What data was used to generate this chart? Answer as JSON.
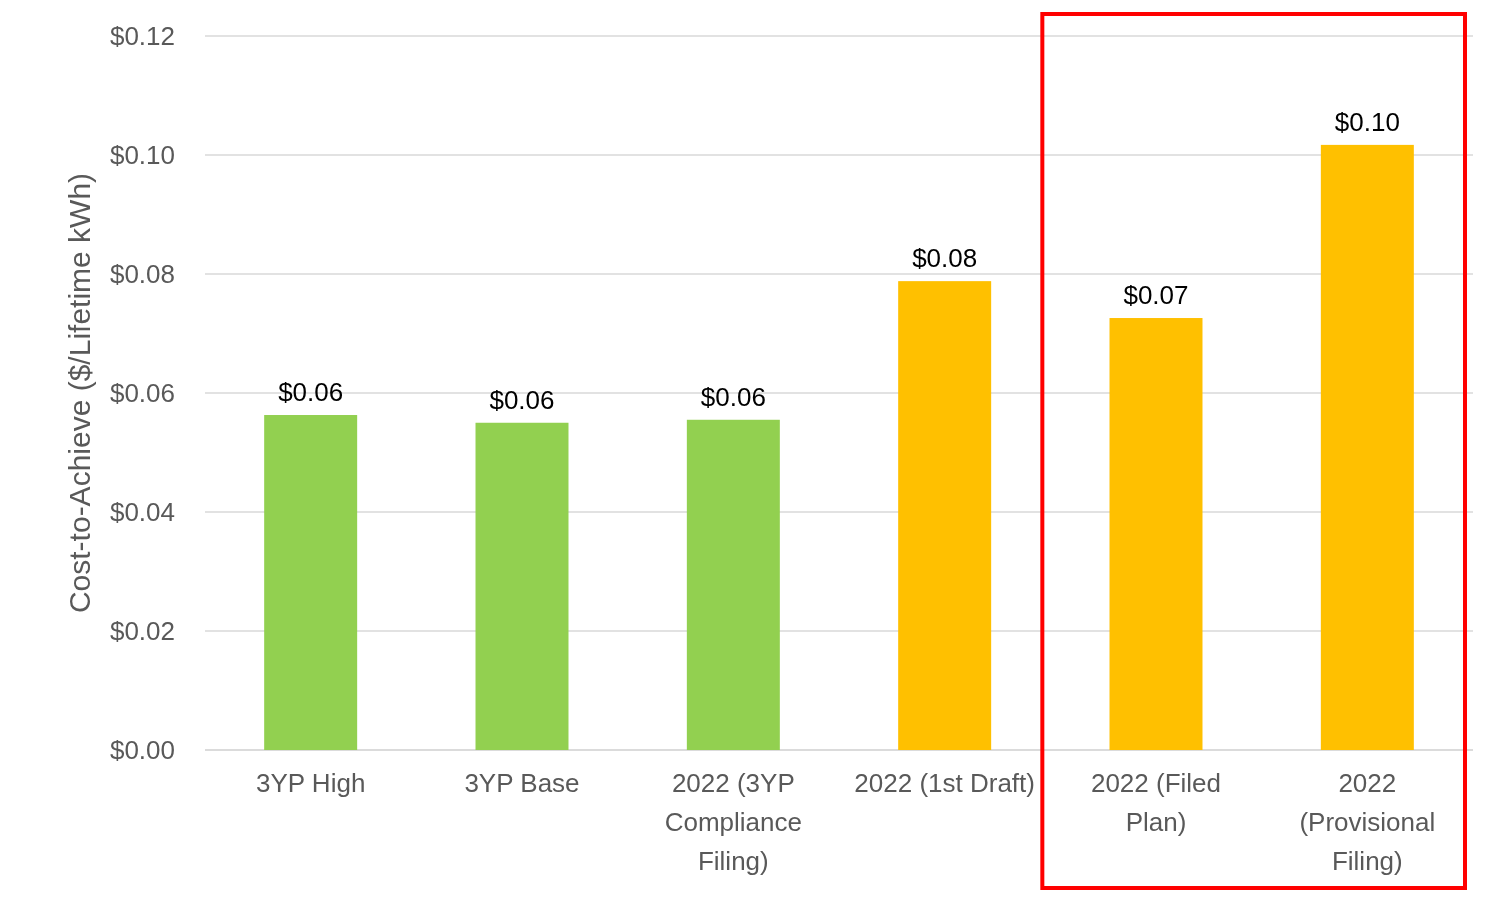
{
  "chart_data": {
    "type": "bar",
    "ylabel": "Cost-to-Achieve ($/Lifetime kWh)",
    "categories": [
      "3YP High",
      "3YP Base",
      "2022 (3YP Compliance Filing)",
      "2022 (1st Draft)",
      "2022 (Filed Plan)",
      "2022 (Provisional Filing)"
    ],
    "values": [
      0.0563,
      0.055,
      0.0555,
      0.0788,
      0.0726,
      0.1017
    ],
    "colors": [
      "#92d050",
      "#92d050",
      "#92d050",
      "#ffc000",
      "#ffc000",
      "#ffc000"
    ],
    "value_labels": [
      "$0.06",
      "$0.06",
      "$0.06",
      "$0.08",
      "$0.07",
      "$0.10"
    ],
    "ylim": [
      0,
      0.12
    ],
    "yticks": [
      {
        "value": 0,
        "label": "$0.00"
      },
      {
        "value": 0.02,
        "label": "$0.02"
      },
      {
        "value": 0.04,
        "label": "$0.04"
      },
      {
        "value": 0.06,
        "label": "$0.06"
      },
      {
        "value": 0.08,
        "label": "$0.08"
      },
      {
        "value": 0.1,
        "label": "$0.10"
      },
      {
        "value": 0.12,
        "label": "$0.12"
      }
    ],
    "grid": "y"
  }
}
